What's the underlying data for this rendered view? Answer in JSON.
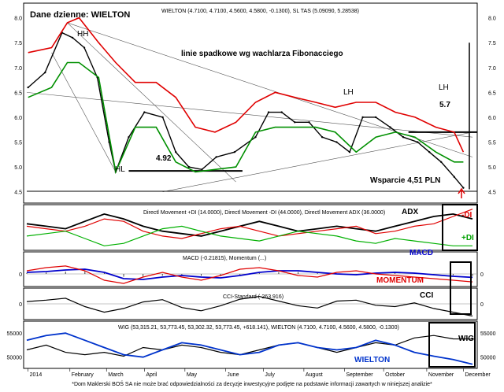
{
  "chart_data": [
    {
      "type": "line",
      "panel": "price",
      "title": "Dane dzienne: WIELTON",
      "header": "WIELTON (4.7100, 4.7100, 4.5600, 4.5800, -0.1300), SL TAS (5.09090, 5.28538)",
      "ylim": [
        4.4,
        8.2
      ],
      "y_ticks": [
        "8.0",
        "7.5",
        "7.0",
        "6.5",
        "6.0",
        "5.5",
        "5.0",
        "4.5"
      ],
      "x_months": [
        "2014",
        "February",
        "March",
        "April",
        "May",
        "June",
        "July",
        "August",
        "September",
        "October",
        "November",
        "December"
      ],
      "series": [
        {
          "name": "WIELTON",
          "color": "#000000",
          "x": [
            "2014-01-02",
            "2014-01-15",
            "2014-01-28",
            "2014-02-05",
            "2014-02-14",
            "2014-02-24",
            "2014-03-05",
            "2014-03-10",
            "2014-03-20",
            "2014-04-01",
            "2014-04-15",
            "2014-04-25",
            "2014-05-05",
            "2014-05-15",
            "2014-05-26",
            "2014-06-09",
            "2014-06-25",
            "2014-07-05",
            "2014-07-15",
            "2014-07-25",
            "2014-08-05",
            "2014-08-15",
            "2014-08-26",
            "2014-09-05",
            "2014-09-15",
            "2014-09-25",
            "2014-10-06",
            "2014-10-16",
            "2014-10-27",
            "2014-11-05",
            "2014-11-14",
            "2014-11-24",
            "2014-12-01"
          ],
          "values": [
            6.6,
            6.9,
            7.7,
            7.6,
            7.4,
            6.8,
            5.5,
            4.9,
            5.6,
            6.1,
            6.0,
            5.3,
            5.0,
            4.95,
            5.2,
            5.3,
            5.6,
            6.1,
            6.1,
            5.9,
            5.9,
            5.6,
            5.5,
            5.3,
            6.0,
            6.0,
            5.8,
            5.6,
            5.5,
            5.3,
            5.1,
            4.8,
            4.58
          ]
        },
        {
          "name": "SL TAS upper",
          "color": "#e00000",
          "x": [
            "2014-01-02",
            "2014-01-20",
            "2014-02-01",
            "2014-02-10",
            "2014-02-25",
            "2014-03-10",
            "2014-03-25",
            "2014-04-10",
            "2014-04-25",
            "2014-05-10",
            "2014-05-25",
            "2014-06-10",
            "2014-06-25",
            "2014-07-10",
            "2014-07-25",
            "2014-08-10",
            "2014-08-25",
            "2014-09-10",
            "2014-09-25",
            "2014-10-10",
            "2014-10-25",
            "2014-11-10",
            "2014-11-24",
            "2014-12-01"
          ],
          "values": [
            7.3,
            7.4,
            7.9,
            8.0,
            7.5,
            7.1,
            6.7,
            6.7,
            6.4,
            5.8,
            5.7,
            5.9,
            6.3,
            6.5,
            6.4,
            6.3,
            6.2,
            6.3,
            6.3,
            6.1,
            6.0,
            5.8,
            5.7,
            5.3
          ]
        },
        {
          "name": "SL TAS lower",
          "color": "#009000",
          "x": [
            "2014-01-02",
            "2014-01-20",
            "2014-02-01",
            "2014-02-10",
            "2014-02-25",
            "2014-03-10",
            "2014-03-25",
            "2014-04-10",
            "2014-04-25",
            "2014-05-10",
            "2014-05-25",
            "2014-06-10",
            "2014-06-25",
            "2014-07-10",
            "2014-07-25",
            "2014-08-10",
            "2014-08-25",
            "2014-09-10",
            "2014-09-25",
            "2014-10-10",
            "2014-10-25",
            "2014-11-10",
            "2014-11-24",
            "2014-12-01"
          ],
          "values": [
            6.4,
            6.6,
            7.1,
            7.1,
            6.8,
            4.9,
            5.8,
            5.8,
            5.1,
            4.9,
            4.95,
            5.0,
            5.7,
            5.8,
            5.8,
            5.8,
            5.7,
            5.3,
            5.6,
            5.7,
            5.6,
            5.3,
            5.1,
            5.1
          ]
        }
      ],
      "annotations": [
        "HH",
        "linie spadkowe wg wachlarza Fibonacciego",
        "LH",
        "LH",
        "5.7",
        "HL",
        "4.92",
        "Wsparcie 4,51 PLN"
      ]
    },
    {
      "type": "line",
      "panel": "dmi",
      "title": "Directl Movement +DI (14.0000), Directl Movement -DI (44.0000), Directl Movement ADX (36.0000)",
      "y_ticks": [],
      "series": [
        {
          "name": "ADX",
          "color": "#000000",
          "x": [
            1,
            2,
            3,
            4,
            5,
            6,
            7,
            8,
            9,
            10,
            11,
            12,
            13,
            14,
            15,
            16,
            17,
            18,
            19,
            20,
            21,
            22,
            23,
            24
          ],
          "values": [
            32,
            30,
            28,
            34,
            40,
            36,
            30,
            26,
            24,
            22,
            26,
            30,
            34,
            30,
            26,
            28,
            30,
            28,
            26,
            30,
            34,
            38,
            40,
            36
          ]
        },
        {
          "name": "-DI",
          "color": "#e00000",
          "x": [
            1,
            2,
            3,
            4,
            5,
            6,
            7,
            8,
            9,
            10,
            11,
            12,
            13,
            14,
            15,
            16,
            17,
            18,
            19,
            20,
            21,
            22,
            23,
            24
          ],
          "values": [
            30,
            28,
            26,
            30,
            36,
            34,
            26,
            22,
            20,
            24,
            28,
            30,
            26,
            22,
            24,
            26,
            28,
            30,
            24,
            26,
            30,
            32,
            38,
            44
          ]
        },
        {
          "name": "+DI",
          "color": "#00b000",
          "x": [
            1,
            2,
            3,
            4,
            5,
            6,
            7,
            8,
            9,
            10,
            11,
            12,
            13,
            14,
            15,
            16,
            17,
            18,
            19,
            20,
            21,
            22,
            23,
            24
          ],
          "values": [
            22,
            24,
            26,
            20,
            14,
            16,
            22,
            28,
            30,
            26,
            22,
            20,
            18,
            22,
            26,
            24,
            22,
            18,
            16,
            20,
            18,
            16,
            14,
            14
          ]
        }
      ],
      "annotations": [
        "ADX",
        "-DI",
        "+DI"
      ]
    },
    {
      "type": "line",
      "panel": "macd",
      "title": "MACD (-0.21815), Momentum (...)",
      "y_ticks": [
        "0"
      ],
      "series": [
        {
          "name": "MACD",
          "color": "#0000cc",
          "x": [
            1,
            2,
            3,
            4,
            5,
            6,
            7,
            8,
            9,
            10,
            11,
            12,
            13,
            14,
            15,
            16,
            17,
            18,
            19,
            20,
            21,
            22,
            23,
            24
          ],
          "values": [
            0.1,
            0.15,
            0.25,
            0.3,
            0.1,
            -0.3,
            -0.35,
            -0.2,
            -0.1,
            -0.2,
            -0.25,
            -0.1,
            0.1,
            0.2,
            0.2,
            0.1,
            0.0,
            -0.05,
            0.05,
            0.1,
            0.05,
            -0.05,
            -0.15,
            -0.22
          ]
        },
        {
          "name": "MOMENTUM",
          "color": "#e00000",
          "x": [
            1,
            2,
            3,
            4,
            5,
            6,
            7,
            8,
            9,
            10,
            11,
            12,
            13,
            14,
            15,
            16,
            17,
            18,
            19,
            20,
            21,
            22,
            23,
            24
          ],
          "values": [
            0.2,
            0.4,
            0.5,
            0.2,
            -0.4,
            -0.6,
            -0.2,
            0.1,
            -0.2,
            -0.4,
            -0.1,
            0.3,
            0.4,
            0.2,
            -0.1,
            -0.2,
            0.1,
            0.2,
            0.0,
            -0.1,
            -0.2,
            -0.3,
            -0.4,
            -0.5
          ]
        }
      ],
      "annotations": [
        "MACD",
        "MOMENTUM"
      ]
    },
    {
      "type": "line",
      "panel": "cci",
      "title": "CCI-Standard (-263.916)",
      "y_ticks": [
        "0"
      ],
      "series": [
        {
          "name": "CCI",
          "color": "#000000",
          "x": [
            1,
            2,
            3,
            4,
            5,
            6,
            7,
            8,
            9,
            10,
            11,
            12,
            13,
            14,
            15,
            16,
            17,
            18,
            19,
            20,
            21,
            22,
            23,
            24
          ],
          "values": [
            50,
            80,
            120,
            -60,
            -180,
            -100,
            40,
            90,
            -80,
            -150,
            -40,
            100,
            160,
            60,
            -40,
            -90,
            60,
            80,
            -30,
            -60,
            20,
            -100,
            -180,
            -264
          ]
        }
      ],
      "annotations": [
        "CCI"
      ]
    },
    {
      "type": "line",
      "panel": "wig",
      "title": "WIG (53,315.21, 53,773.45, 53,302.32, 53,773.45, +618.141), WIELTON (4.7100, 4.7100, 4.5600, 4.5800, -0.1300)",
      "y_ticks": [
        "55000",
        "50000"
      ],
      "series": [
        {
          "name": "WIG",
          "color": "#000000",
          "x": [
            1,
            2,
            3,
            4,
            5,
            6,
            7,
            8,
            9,
            10,
            11,
            12,
            13,
            14,
            15,
            16,
            17,
            18,
            19,
            20,
            21,
            22,
            23,
            24
          ],
          "values": [
            51500,
            52500,
            51000,
            50500,
            51000,
            50200,
            52000,
            51500,
            52500,
            52000,
            51000,
            50500,
            51500,
            52500,
            53000,
            52000,
            51000,
            52000,
            53000,
            52500,
            54000,
            54500,
            53800,
            53773
          ]
        },
        {
          "name": "WIELTON",
          "color": "#0033cc",
          "x": [
            1,
            2,
            3,
            4,
            5,
            6,
            7,
            8,
            9,
            10,
            11,
            12,
            13,
            14,
            15,
            16,
            17,
            18,
            19,
            20,
            21,
            22,
            23,
            24
          ],
          "values": [
            53500,
            54500,
            55000,
            53500,
            52000,
            50500,
            50000,
            51500,
            53000,
            52500,
            51500,
            50500,
            51000,
            52500,
            53000,
            52000,
            51500,
            52000,
            53500,
            52500,
            51000,
            50200,
            49500,
            48500
          ]
        }
      ],
      "annotations": [
        "WIG",
        "WIELTON"
      ]
    }
  ],
  "colors": {
    "upper": "#e00000",
    "lower": "#009000",
    "macd": "#0000cc",
    "wig2": "#0033cc",
    "frame": "#000000"
  },
  "footer": "*Dom Maklerski BOŚ SA nie może brać odpowiedzialności za decyzje inwestycyjne podjęte na podstawie informacji zawartych w niniejszej analizie*"
}
